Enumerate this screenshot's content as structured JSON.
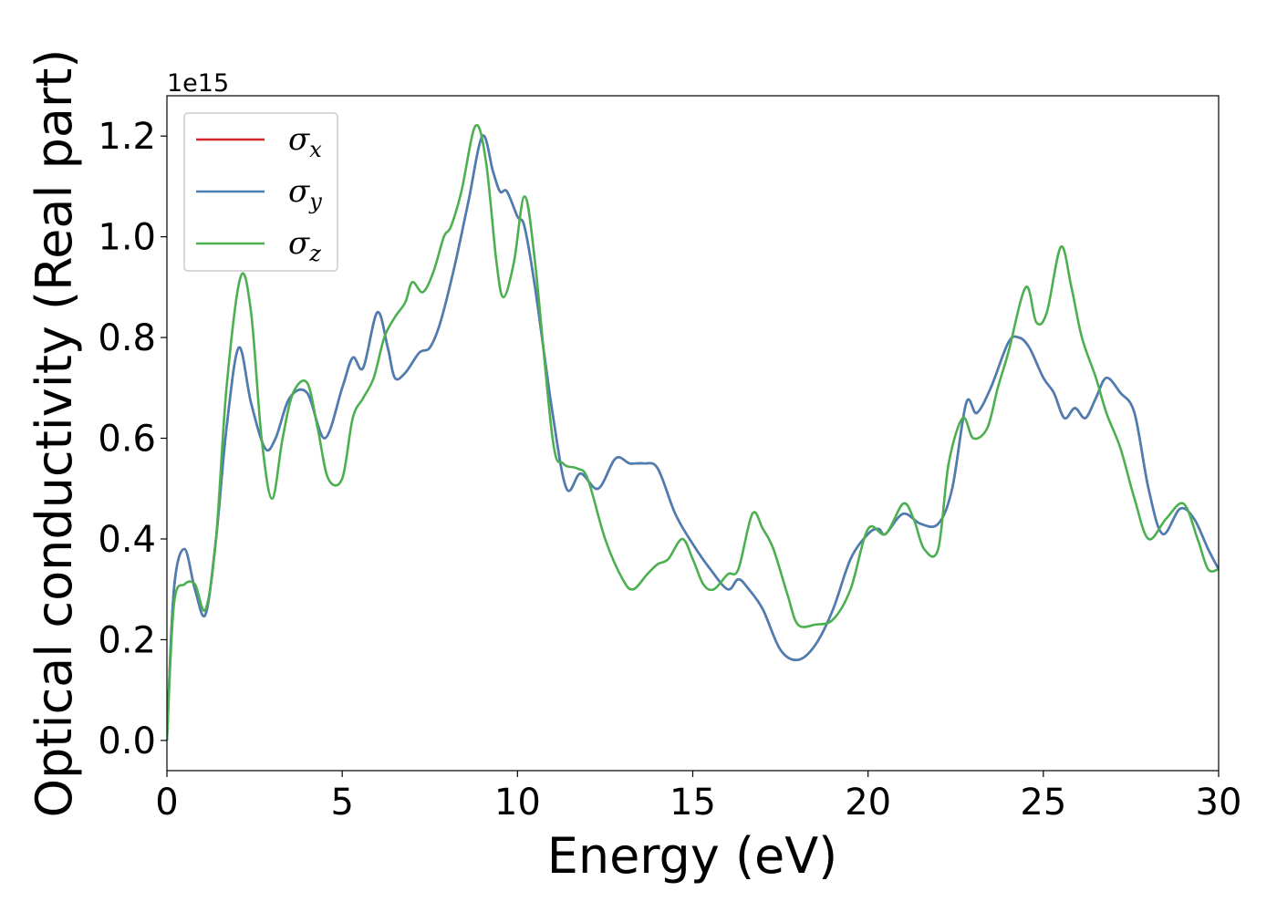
{
  "chart_data": {
    "type": "line",
    "title": "",
    "xlabel": "Energy (eV)",
    "ylabel": "Optical conductivity (Real part)",
    "y_offset_text": "1e15",
    "xlim": [
      0,
      30
    ],
    "ylim": [
      -0.06,
      1.28
    ],
    "x_ticks": [
      0,
      5,
      10,
      15,
      20,
      25,
      30
    ],
    "x_tick_labels": [
      "0",
      "5",
      "10",
      "15",
      "20",
      "25",
      "30"
    ],
    "y_ticks": [
      0.0,
      0.2,
      0.4,
      0.6,
      0.8,
      1.0,
      1.2
    ],
    "y_tick_labels": [
      "0.0",
      "0.2",
      "0.4",
      "0.6",
      "0.8",
      "1.0",
      "1.2"
    ],
    "grid": false,
    "legend_position": "top-left",
    "series": [
      {
        "name": "σx",
        "symbol": "σ",
        "subscript": "x",
        "color": "#d62728",
        "x": [
          0,
          0.2,
          0.5,
          0.8,
          1.1,
          1.4,
          1.7,
          2.05,
          2.4,
          2.8,
          3.1,
          3.5,
          4.0,
          4.5,
          5.0,
          5.3,
          5.6,
          6.0,
          6.3,
          6.5,
          6.8,
          7.2,
          7.5,
          7.8,
          8.2,
          8.6,
          9.0,
          9.3,
          9.5,
          9.7,
          10.0,
          10.2,
          10.5,
          11.0,
          11.4,
          11.8,
          12.3,
          12.8,
          13.2,
          13.6,
          14.0,
          14.5,
          15.0,
          15.5,
          16.0,
          16.3,
          16.6,
          17.0,
          17.5,
          18.0,
          18.5,
          19.0,
          19.5,
          20.0,
          20.3,
          20.5,
          21.0,
          21.5,
          22.0,
          22.4,
          22.8,
          23.1,
          23.5,
          24.0,
          24.3,
          24.6,
          25.0,
          25.3,
          25.6,
          25.9,
          26.2,
          26.5,
          26.8,
          27.2,
          27.6,
          28.0,
          28.4,
          28.9,
          29.3,
          29.7,
          30.0
        ],
        "y": [
          0.0,
          0.3,
          0.38,
          0.3,
          0.25,
          0.4,
          0.62,
          0.78,
          0.67,
          0.58,
          0.6,
          0.68,
          0.69,
          0.6,
          0.7,
          0.76,
          0.74,
          0.85,
          0.78,
          0.72,
          0.73,
          0.77,
          0.78,
          0.83,
          0.94,
          1.07,
          1.2,
          1.13,
          1.09,
          1.09,
          1.04,
          1.02,
          0.9,
          0.65,
          0.5,
          0.53,
          0.5,
          0.56,
          0.55,
          0.55,
          0.54,
          0.45,
          0.39,
          0.34,
          0.3,
          0.32,
          0.3,
          0.26,
          0.18,
          0.16,
          0.19,
          0.26,
          0.36,
          0.41,
          0.42,
          0.41,
          0.45,
          0.43,
          0.43,
          0.5,
          0.67,
          0.65,
          0.7,
          0.79,
          0.8,
          0.78,
          0.72,
          0.69,
          0.64,
          0.66,
          0.64,
          0.68,
          0.72,
          0.69,
          0.65,
          0.5,
          0.41,
          0.46,
          0.44,
          0.38,
          0.34
        ]
      },
      {
        "name": "σy",
        "symbol": "σ",
        "subscript": "y",
        "color": "#4a7fb5",
        "x": [
          0,
          0.2,
          0.5,
          0.8,
          1.1,
          1.4,
          1.7,
          2.05,
          2.4,
          2.8,
          3.1,
          3.5,
          4.0,
          4.5,
          5.0,
          5.3,
          5.6,
          6.0,
          6.3,
          6.5,
          6.8,
          7.2,
          7.5,
          7.8,
          8.2,
          8.6,
          9.0,
          9.3,
          9.5,
          9.7,
          10.0,
          10.2,
          10.5,
          11.0,
          11.4,
          11.8,
          12.3,
          12.8,
          13.2,
          13.6,
          14.0,
          14.5,
          15.0,
          15.5,
          16.0,
          16.3,
          16.6,
          17.0,
          17.5,
          18.0,
          18.5,
          19.0,
          19.5,
          20.0,
          20.3,
          20.5,
          21.0,
          21.5,
          22.0,
          22.4,
          22.8,
          23.1,
          23.5,
          24.0,
          24.3,
          24.6,
          25.0,
          25.3,
          25.6,
          25.9,
          26.2,
          26.5,
          26.8,
          27.2,
          27.6,
          28.0,
          28.4,
          28.9,
          29.3,
          29.7,
          30.0
        ],
        "y": [
          0.0,
          0.3,
          0.38,
          0.3,
          0.25,
          0.4,
          0.62,
          0.78,
          0.67,
          0.58,
          0.6,
          0.68,
          0.69,
          0.6,
          0.7,
          0.76,
          0.74,
          0.85,
          0.78,
          0.72,
          0.73,
          0.77,
          0.78,
          0.83,
          0.94,
          1.07,
          1.2,
          1.13,
          1.09,
          1.09,
          1.04,
          1.02,
          0.9,
          0.65,
          0.5,
          0.53,
          0.5,
          0.56,
          0.55,
          0.55,
          0.54,
          0.45,
          0.39,
          0.34,
          0.3,
          0.32,
          0.3,
          0.26,
          0.18,
          0.16,
          0.19,
          0.26,
          0.36,
          0.41,
          0.42,
          0.41,
          0.45,
          0.43,
          0.43,
          0.5,
          0.67,
          0.65,
          0.7,
          0.79,
          0.8,
          0.78,
          0.72,
          0.69,
          0.64,
          0.66,
          0.64,
          0.68,
          0.72,
          0.69,
          0.65,
          0.5,
          0.41,
          0.46,
          0.44,
          0.38,
          0.34
        ]
      },
      {
        "name": "σz",
        "symbol": "σ",
        "subscript": "z",
        "color": "#4caf50",
        "x": [
          0,
          0.2,
          0.5,
          0.8,
          1.1,
          1.4,
          1.7,
          2.1,
          2.4,
          2.7,
          3.0,
          3.3,
          3.6,
          4.0,
          4.3,
          4.6,
          5.0,
          5.3,
          5.6,
          5.9,
          6.2,
          6.5,
          6.8,
          7.0,
          7.3,
          7.6,
          7.9,
          8.1,
          8.4,
          8.8,
          9.1,
          9.4,
          9.6,
          9.9,
          10.2,
          10.5,
          11.0,
          11.3,
          11.7,
          12.0,
          12.5,
          13.0,
          13.3,
          13.7,
          14.0,
          14.3,
          14.7,
          15.0,
          15.3,
          15.6,
          16.0,
          16.3,
          16.7,
          17.0,
          17.3,
          17.7,
          18.0,
          18.5,
          19.0,
          19.5,
          20.0,
          20.5,
          21.0,
          21.3,
          21.6,
          22.0,
          22.3,
          22.7,
          23.0,
          23.4,
          23.7,
          24.0,
          24.5,
          24.8,
          25.1,
          25.5,
          25.8,
          26.1,
          26.5,
          26.8,
          27.2,
          27.6,
          28.0,
          28.5,
          29.0,
          29.4,
          29.7,
          30.0
        ],
        "y": [
          0.0,
          0.27,
          0.31,
          0.31,
          0.26,
          0.4,
          0.7,
          0.92,
          0.85,
          0.6,
          0.48,
          0.6,
          0.69,
          0.71,
          0.62,
          0.52,
          0.52,
          0.64,
          0.68,
          0.72,
          0.8,
          0.84,
          0.87,
          0.91,
          0.89,
          0.93,
          1.0,
          1.02,
          1.09,
          1.22,
          1.15,
          0.95,
          0.88,
          0.95,
          1.08,
          0.95,
          0.6,
          0.55,
          0.54,
          0.52,
          0.4,
          0.32,
          0.3,
          0.33,
          0.35,
          0.36,
          0.4,
          0.36,
          0.31,
          0.3,
          0.33,
          0.34,
          0.45,
          0.42,
          0.38,
          0.29,
          0.23,
          0.23,
          0.24,
          0.3,
          0.42,
          0.41,
          0.47,
          0.44,
          0.38,
          0.38,
          0.55,
          0.64,
          0.6,
          0.62,
          0.7,
          0.77,
          0.9,
          0.83,
          0.85,
          0.98,
          0.9,
          0.8,
          0.72,
          0.65,
          0.58,
          0.48,
          0.4,
          0.44,
          0.47,
          0.4,
          0.34,
          0.34
        ]
      }
    ]
  }
}
